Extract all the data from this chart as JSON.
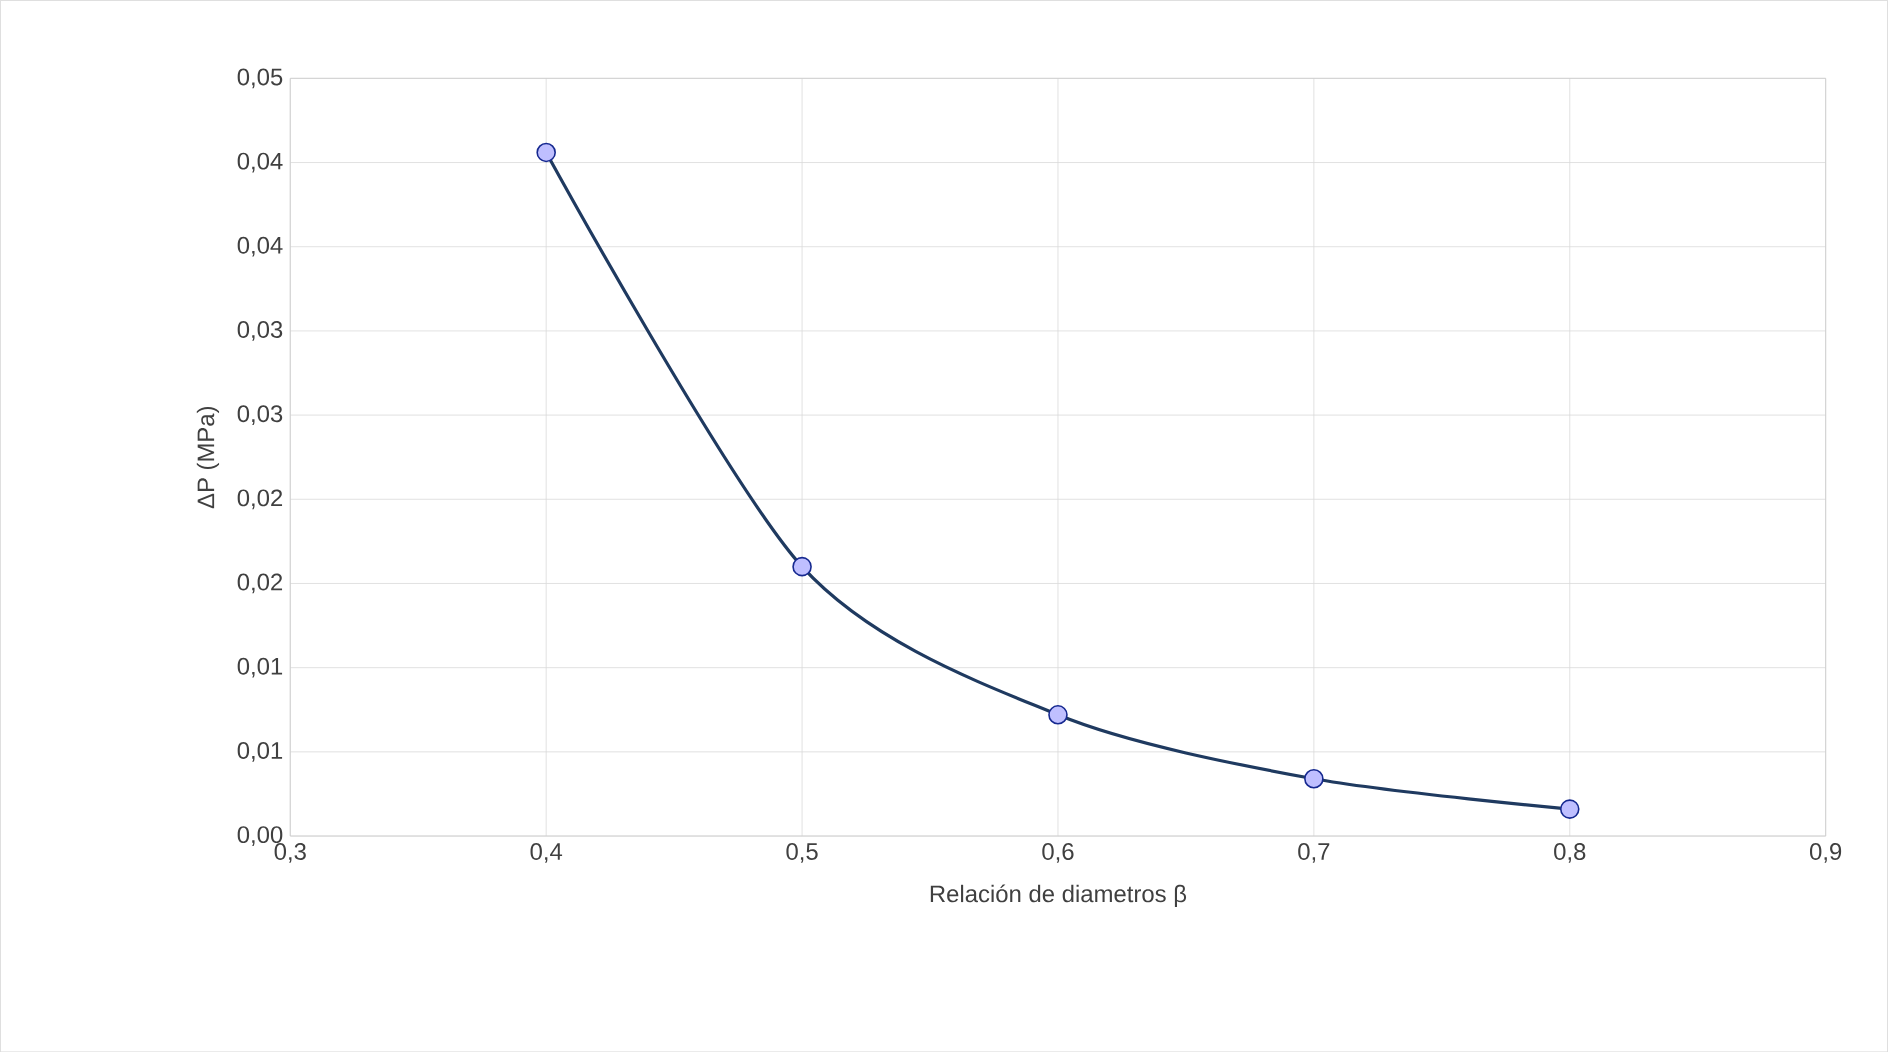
{
  "chart_data": {
    "type": "line",
    "xlabel": "Relación de diametros β",
    "ylabel": "ΔP (MPa)",
    "x": [
      0.4,
      0.5,
      0.6,
      0.7,
      0.8
    ],
    "series": [
      {
        "color": "#1f3a60",
        "values": [
          0.0406,
          0.016,
          0.0072,
          0.0034,
          0.0016
        ]
      }
    ],
    "xlim": [
      0.3,
      0.9
    ],
    "xticks": [
      {
        "value": 0.3,
        "label": "0,3"
      },
      {
        "value": 0.4,
        "label": "0,4"
      },
      {
        "value": 0.5,
        "label": "0,5"
      },
      {
        "value": 0.6,
        "label": "0,6"
      },
      {
        "value": 0.7,
        "label": "0,7"
      },
      {
        "value": 0.8,
        "label": "0,8"
      },
      {
        "value": 0.9,
        "label": "0,9"
      }
    ],
    "ylim": [
      0,
      0.045
    ],
    "yticks": [
      {
        "value": 0,
        "label": "0,00"
      },
      {
        "value": 0.005,
        "label": "0,01"
      },
      {
        "value": 0.01,
        "label": "0,01"
      },
      {
        "value": 0.015,
        "label": "0,02"
      },
      {
        "value": 0.02,
        "label": "0,02"
      },
      {
        "value": 0.025,
        "label": "0,03"
      },
      {
        "value": 0.03,
        "label": "0,03"
      },
      {
        "value": 0.035,
        "label": "0,04"
      },
      {
        "value": 0.04,
        "label": "0,04"
      },
      {
        "value": 0.045,
        "label": "0,05"
      }
    ],
    "grid": true,
    "marker": "circle",
    "line_style": "solid"
  }
}
